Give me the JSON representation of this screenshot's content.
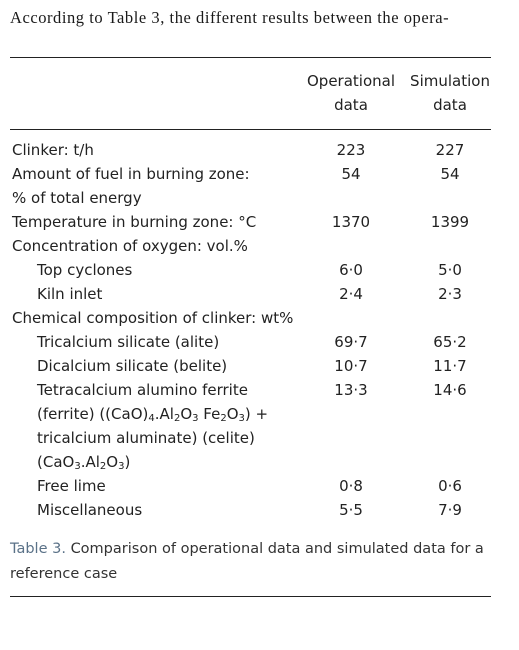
{
  "intro_text": "According to Table 3, the different results between the opera-",
  "table": {
    "headers": {
      "col1_line1": "Operational",
      "col1_line2": "data",
      "col2_line1": "Simulation",
      "col2_line2": "data"
    },
    "rows": [
      {
        "label": "Clinker: t/h",
        "op": "223",
        "sim": "227"
      },
      {
        "label": "Amount of fuel in burning zone:",
        "op": "54",
        "sim": "54"
      },
      {
        "label": "% of total energy",
        "op": "",
        "sim": ""
      },
      {
        "label": "Temperature in burning zone: °C",
        "op": "1370",
        "sim": "1399"
      },
      {
        "label": "Concentration of oxygen: vol.%",
        "op": "",
        "sim": ""
      },
      {
        "label": "Top cyclones",
        "op": "6·0",
        "sim": "5·0"
      },
      {
        "label": "Kiln inlet",
        "op": "2·4",
        "sim": "2·3"
      },
      {
        "label": "Chemical composition of clinker: wt%",
        "op": "",
        "sim": ""
      },
      {
        "label": "Tricalcium silicate (alite)",
        "op": "69·7",
        "sim": "65·2"
      },
      {
        "label": "Dicalcium silicate (belite)",
        "op": "10·7",
        "sim": "11·7"
      },
      {
        "label": "Tetracalcium alumino ferrite",
        "op": "13·3",
        "sim": "14·6"
      },
      {
        "label": "(ferrite) ((CaO)4.Al2O3 Fe2O3) +",
        "op": "",
        "sim": ""
      },
      {
        "label": "tricalcium aluminate) (celite)",
        "op": "",
        "sim": ""
      },
      {
        "label": "(CaO3.Al2O3)",
        "op": "",
        "sim": ""
      },
      {
        "label": "Free lime",
        "op": "0·8",
        "sim": "0·6"
      },
      {
        "label": "Miscellaneous",
        "op": "5·5",
        "sim": "7·9"
      }
    ]
  },
  "caption": {
    "label": "Table 3.",
    "text": "Comparison of operational data and simulated data for a reference case"
  }
}
